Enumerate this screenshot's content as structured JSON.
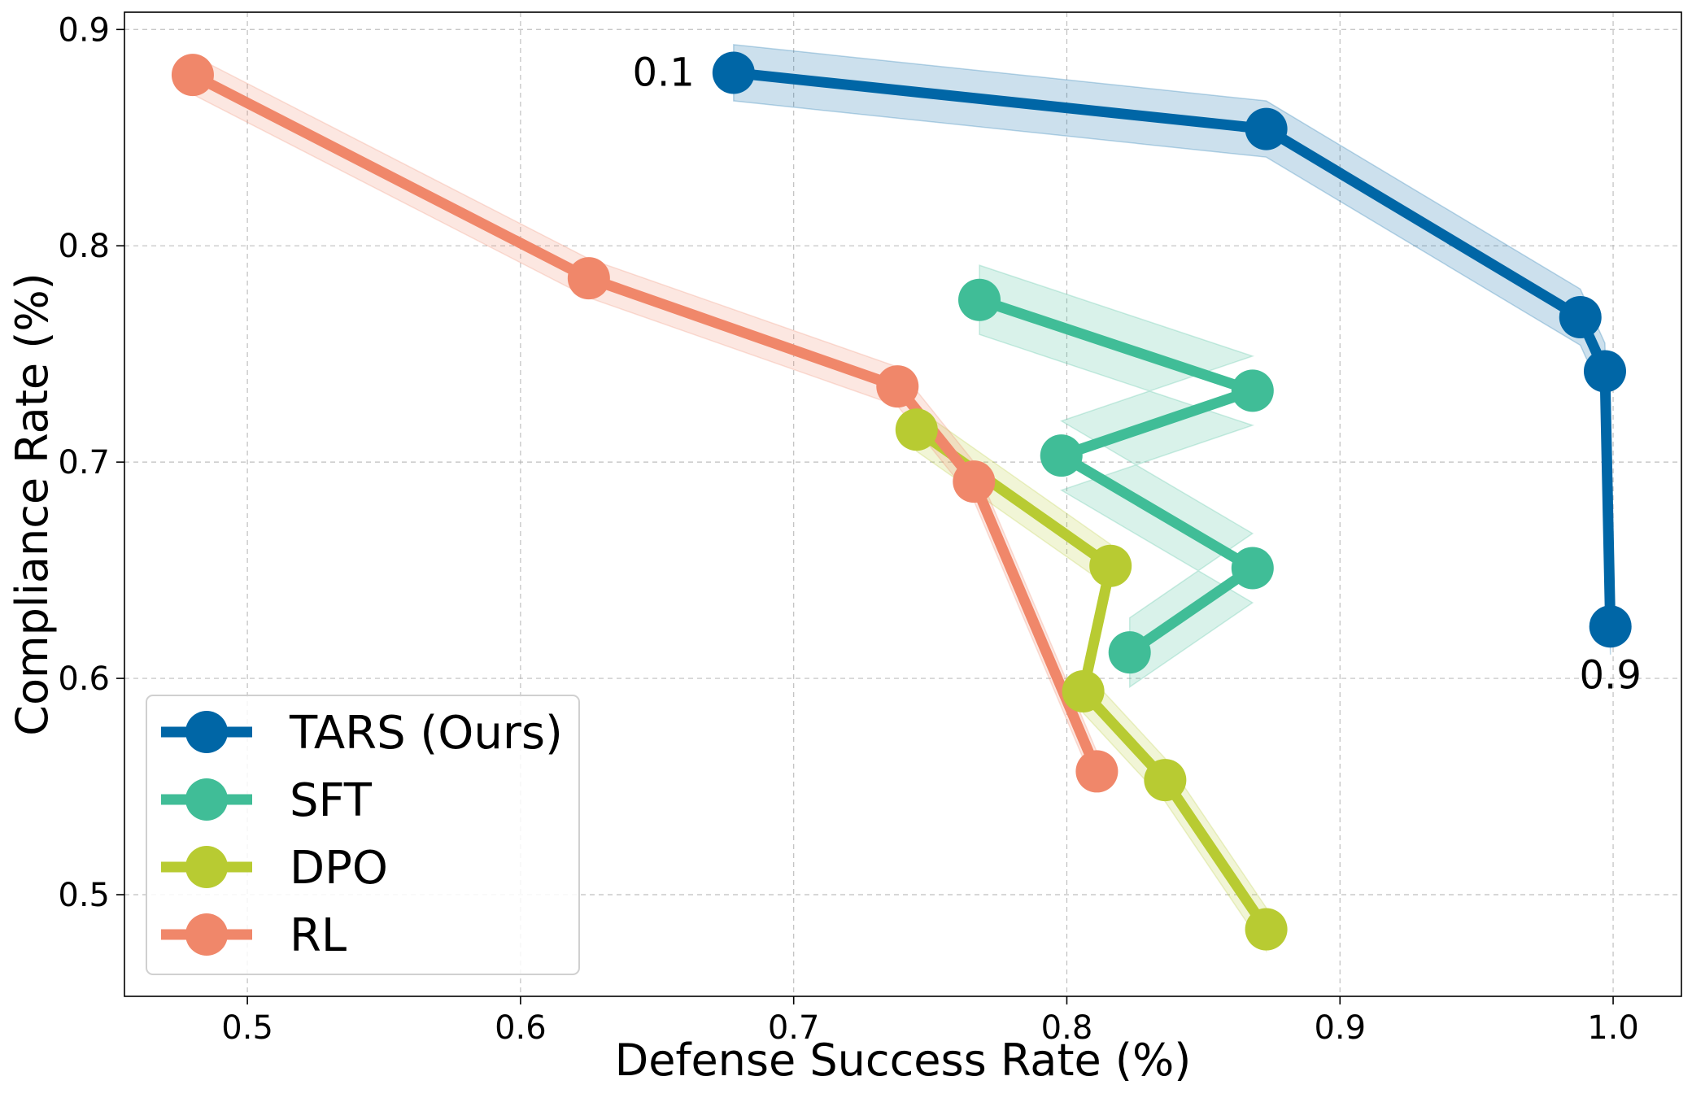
{
  "chart_data": {
    "type": "line",
    "title": "",
    "xlabel": "Defense Success Rate (%)",
    "ylabel": "Compliance Rate (%)",
    "xlim": [
      0.455,
      1.025
    ],
    "ylim": [
      0.453,
      0.908
    ],
    "xticks": [
      0.5,
      0.6,
      0.7,
      0.8,
      0.9,
      1.0
    ],
    "xtick_labels": [
      "0.5",
      "0.6",
      "0.7",
      "0.8",
      "0.9",
      "1.0"
    ],
    "yticks": [
      0.5,
      0.6,
      0.7,
      0.8,
      0.9
    ],
    "ytick_labels": [
      "0.5",
      "0.6",
      "0.7",
      "0.8",
      "0.9"
    ],
    "grid": true,
    "legend_position": "lower-left",
    "series": [
      {
        "name": "TARS (Ours)",
        "color": "#0066a6",
        "x": [
          0.678,
          0.873,
          0.988,
          0.997,
          0.999
        ],
        "y": [
          0.88,
          0.854,
          0.767,
          0.742,
          0.624
        ],
        "band": 0.013
      },
      {
        "name": "SFT",
        "color": "#40bd97",
        "x": [
          0.768,
          0.868,
          0.798,
          0.868,
          0.823
        ],
        "y": [
          0.775,
          0.733,
          0.703,
          0.651,
          0.612
        ],
        "band": 0.016
      },
      {
        "name": "DPO",
        "color": "#b8cb32",
        "x": [
          0.745,
          0.816,
          0.806,
          0.836,
          0.873
        ],
        "y": [
          0.715,
          0.652,
          0.594,
          0.553,
          0.484
        ],
        "band": 0.01
      },
      {
        "name": "RL",
        "color": "#f0876a",
        "x": [
          0.48,
          0.625,
          0.738,
          0.766,
          0.811
        ],
        "y": [
          0.879,
          0.785,
          0.735,
          0.691,
          0.557
        ],
        "band": 0.009
      }
    ],
    "annotations": [
      {
        "text": "0.1",
        "x": 0.678,
        "y": 0.88,
        "align": "left"
      },
      {
        "text": "0.9",
        "x": 0.999,
        "y": 0.624,
        "align": "below"
      }
    ]
  }
}
